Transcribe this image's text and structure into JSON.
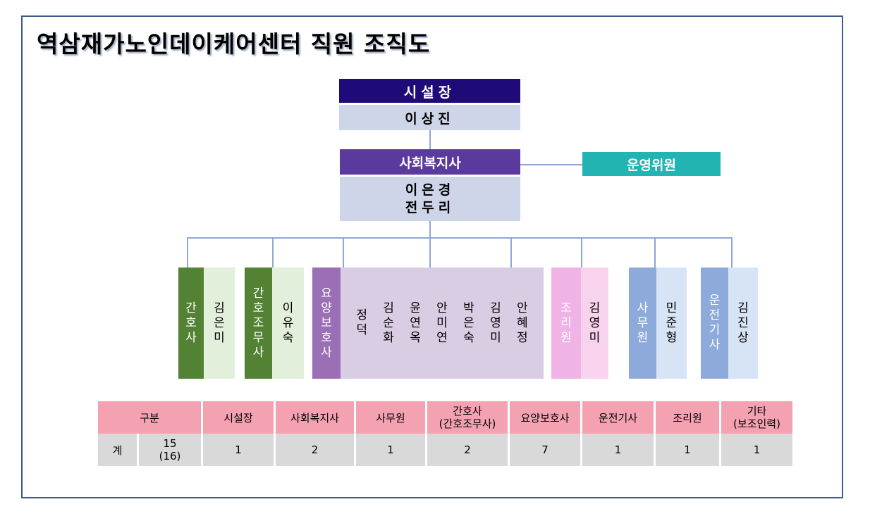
{
  "title": "역삼재가노인데이케어센터 직원 조직도",
  "director": {
    "role": "시설장",
    "name": "이상진"
  },
  "social_worker": {
    "role": "사회복지사",
    "names": [
      "이은경",
      "전두리"
    ]
  },
  "committee": "운영위원",
  "teams": [
    {
      "role": "간호사",
      "members": [
        "김은미"
      ],
      "role_color": "#548235",
      "member_color": "#e2efda"
    },
    {
      "role": "간호조무사",
      "members": [
        "이유숙"
      ],
      "role_color": "#548235",
      "member_color": "#e2efda"
    },
    {
      "role": "요양보호사",
      "members": [
        "정덕",
        "김순화",
        "윤연옥",
        "안미연",
        "박은숙",
        "김영미",
        "안혜정"
      ],
      "role_color": "#9a6fb5",
      "member_color": "#d9cde4"
    },
    {
      "role": "조리원",
      "members": [
        "김영미"
      ],
      "role_color": "#f0b3e6",
      "member_color": "#f7d3ee"
    },
    {
      "role": "사무원",
      "members": [
        "민준형"
      ],
      "role_color": "#8eaadb",
      "member_color": "#d6e4f5"
    },
    {
      "role": "운전기사",
      "members": [
        "김진상"
      ],
      "role_color": "#8eaadb",
      "member_color": "#d6e4f5"
    }
  ],
  "table": {
    "headers": [
      "구분",
      "시설장",
      "사회복지사",
      "사무원",
      "간호사\n(간호조무사)",
      "요양보호사",
      "운전기사",
      "조리원",
      "기타\n(보조인력)"
    ],
    "row_label": "계",
    "total": "15\n(16)",
    "values": [
      "1",
      "2",
      "1",
      "2",
      "7",
      "1",
      "1",
      "1"
    ]
  }
}
